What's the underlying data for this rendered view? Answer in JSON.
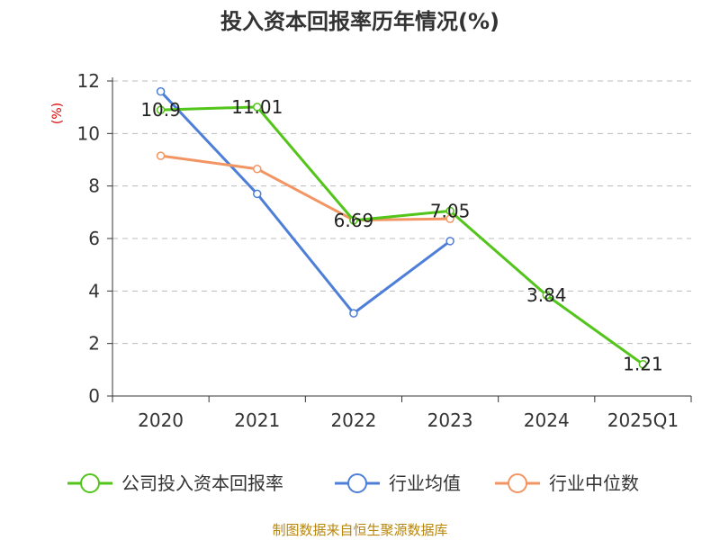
{
  "chart_data": {
    "type": "line",
    "title": "投入资本回报率历年情况(%)",
    "ylabel": "(%)",
    "xlabel": "",
    "categories": [
      "2020",
      "2021",
      "2022",
      "2023",
      "2024",
      "2025Q1"
    ],
    "ylim": [
      0,
      12
    ],
    "yticks": [
      0,
      2,
      4,
      6,
      8,
      10,
      12
    ],
    "grid": true,
    "legend_position": "bottom",
    "series": [
      {
        "name": "公司投入资本回报率",
        "color": "#52c41a",
        "values": [
          10.9,
          11.01,
          6.69,
          7.05,
          3.84,
          1.21
        ],
        "labels": [
          "10.9",
          "11.01",
          "6.69",
          "7.05",
          "3.84",
          "1.21"
        ]
      },
      {
        "name": "行业均值",
        "color": "#4e7fd8",
        "values": [
          11.6,
          7.7,
          3.15,
          5.9,
          null,
          null
        ]
      },
      {
        "name": "行业中位数",
        "color": "#f39562",
        "values": [
          9.15,
          8.65,
          6.7,
          6.75,
          null,
          null
        ]
      }
    ]
  },
  "source": "制图数据来自恒生聚源数据库"
}
